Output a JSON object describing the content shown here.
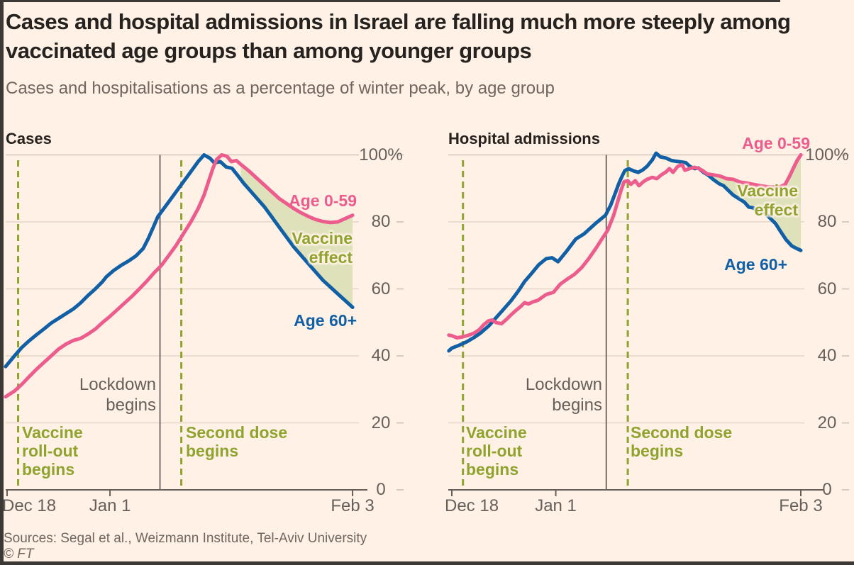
{
  "header": {
    "title": "Cases and hospital admissions in Israel are falling much more steeply among vaccinated age groups than among younger groups",
    "subtitle": "Cases and hospitalisations as a percentage of winter peak, by age group"
  },
  "footer": {
    "sources": "Sources: Segal et al., Weizmann Institute, Tel-Aviv University",
    "copyright": "© FT"
  },
  "colors": {
    "background": "#FFF1E5",
    "pink": "#EC5C8D",
    "blue": "#1160A5",
    "olive": "#8FA32F",
    "wedge_fill": "#DFE1BB",
    "grid": "#E4D6C8",
    "grid_top": "#D2C5B9",
    "axis": "#66605C",
    "side_dash": "#D8CABC",
    "title_text": "#26221F",
    "muted_text": "#6F6660",
    "frame": "#3B3835"
  },
  "y_axis": {
    "ticks": [
      {
        "label": "100%",
        "value": 100
      },
      {
        "label": "80",
        "value": 80
      },
      {
        "label": "60",
        "value": 60
      },
      {
        "label": "40",
        "value": 40
      },
      {
        "label": "20",
        "value": 20
      },
      {
        "label": "0",
        "value": 0
      }
    ]
  },
  "x_axis": {
    "unit": "days since Dec 18",
    "ticks": [
      {
        "label": "Dec 18",
        "day": 0,
        "align": "left"
      },
      {
        "label": "Jan 1",
        "day": 14,
        "align": "center"
      },
      {
        "label": "Feb 3",
        "day": 47,
        "align": "center"
      }
    ]
  },
  "annotations": {
    "vaccine_rollout": {
      "day": 1.5,
      "lines": [
        "Vaccine",
        "roll-out",
        "begins"
      ]
    },
    "lockdown": {
      "day": 20.8,
      "lines": [
        "Lockdown",
        "begins"
      ]
    },
    "second_dose": {
      "day": 23.7,
      "lines": [
        "Second dose",
        "begins"
      ]
    },
    "vaccine_effect": {
      "lines": [
        "Vaccine",
        "effect"
      ]
    },
    "age_0_59_label": "Age 0-59",
    "age_60_label": "Age 60+"
  },
  "chart_data": [
    {
      "type": "line",
      "title": "Cases",
      "ylim": [
        0,
        100
      ],
      "wedge_start_day": 31.8,
      "series": [
        {
          "name": "Age 60+",
          "color_key": "blue",
          "points": [
            [
              -0.2,
              36.8
            ],
            [
              1,
              40
            ],
            [
              2,
              42.5
            ],
            [
              3,
              44.5
            ],
            [
              4,
              46.3
            ],
            [
              5,
              48
            ],
            [
              6,
              49.8
            ],
            [
              7,
              51.2
            ],
            [
              8,
              52.6
            ],
            [
              9,
              54
            ],
            [
              10,
              55.8
            ],
            [
              11,
              58
            ],
            [
              12,
              60
            ],
            [
              13,
              62.2
            ],
            [
              13.5,
              63.6
            ],
            [
              14.5,
              65.5
            ],
            [
              15.5,
              67
            ],
            [
              16.5,
              68.3
            ],
            [
              17.5,
              69.8
            ],
            [
              18.5,
              72
            ],
            [
              19.2,
              75
            ],
            [
              20,
              79
            ],
            [
              20.5,
              81.5
            ],
            [
              21,
              83
            ],
            [
              22,
              86
            ],
            [
              23,
              89
            ],
            [
              24,
              92
            ],
            [
              25,
              95
            ],
            [
              26,
              98
            ],
            [
              26.8,
              100
            ],
            [
              27.6,
              99
            ],
            [
              28.2,
              97.6
            ],
            [
              29,
              98
            ],
            [
              29.8,
              96.4
            ],
            [
              30.6,
              96
            ],
            [
              31.4,
              93.8
            ],
            [
              32.2,
              91.5
            ],
            [
              33,
              89.5
            ],
            [
              34,
              87
            ],
            [
              35,
              84.5
            ],
            [
              36,
              81.5
            ],
            [
              37,
              78.5
            ],
            [
              38,
              75.5
            ],
            [
              39,
              72.5
            ],
            [
              40,
              70
            ],
            [
              41,
              67.5
            ],
            [
              42,
              65
            ],
            [
              43,
              62.5
            ],
            [
              44,
              60.5
            ],
            [
              45,
              58.5
            ],
            [
              46,
              56.5
            ],
            [
              47,
              54.5
            ]
          ]
        },
        {
          "name": "Age 0-59",
          "color_key": "pink",
          "points": [
            [
              -0.2,
              27.8
            ],
            [
              1,
              29.5
            ],
            [
              2,
              31.5
            ],
            [
              3,
              33.8
            ],
            [
              4,
              36
            ],
            [
              5,
              38
            ],
            [
              6,
              40
            ],
            [
              7,
              42
            ],
            [
              8,
              43.5
            ],
            [
              9,
              44.6
            ],
            [
              10,
              45.2
            ],
            [
              11,
              46.5
            ],
            [
              12,
              48
            ],
            [
              13,
              50
            ],
            [
              14,
              51.8
            ],
            [
              15,
              53.8
            ],
            [
              16,
              55.8
            ],
            [
              17,
              57.8
            ],
            [
              18,
              60
            ],
            [
              19,
              62.3
            ],
            [
              20,
              64.8
            ],
            [
              21,
              67
            ],
            [
              22,
              70
            ],
            [
              23,
              73
            ],
            [
              24,
              76.5
            ],
            [
              25,
              80
            ],
            [
              26,
              84
            ],
            [
              26.8,
              88
            ],
            [
              27.4,
              92
            ],
            [
              28,
              96
            ],
            [
              28.5,
              98.6
            ],
            [
              29.2,
              100
            ],
            [
              29.9,
              99.6
            ],
            [
              30.5,
              98
            ],
            [
              31.2,
              98.3
            ],
            [
              32,
              96.8
            ],
            [
              33,
              95
            ],
            [
              34,
              93
            ],
            [
              35,
              91
            ],
            [
              36,
              89
            ],
            [
              37,
              87
            ],
            [
              38,
              85.5
            ],
            [
              39,
              84
            ],
            [
              40,
              82.7
            ],
            [
              41,
              81.6
            ],
            [
              42,
              80.7
            ],
            [
              43,
              80.1
            ],
            [
              44,
              79.8
            ],
            [
              45,
              80
            ],
            [
              46,
              81
            ],
            [
              47,
              82
            ]
          ]
        }
      ]
    },
    {
      "type": "line",
      "title": "Hospital admissions",
      "ylim": [
        0,
        100
      ],
      "wedge_start_day": 33.6,
      "series": [
        {
          "name": "Age 60+",
          "color_key": "blue",
          "points": [
            [
              -0.4,
              41.5
            ],
            [
              0,
              42.3
            ],
            [
              1,
              43.2
            ],
            [
              2,
              44.2
            ],
            [
              3,
              45.5
            ],
            [
              3.8,
              46.7
            ],
            [
              5,
              49
            ],
            [
              6,
              51.5
            ],
            [
              7,
              54
            ],
            [
              8,
              56.5
            ],
            [
              9,
              59.5
            ],
            [
              9.8,
              62.2
            ],
            [
              10.7,
              64.5
            ],
            [
              11.7,
              67.2
            ],
            [
              12.7,
              69
            ],
            [
              13.5,
              69.3
            ],
            [
              14.3,
              68.1
            ],
            [
              15.4,
              71.1
            ],
            [
              16.7,
              74.9
            ],
            [
              17.8,
              76.4
            ],
            [
              18.6,
              78
            ],
            [
              19.5,
              79.8
            ],
            [
              20.7,
              82
            ],
            [
              21.4,
              85
            ],
            [
              22,
              88.5
            ],
            [
              22.5,
              91.5
            ],
            [
              22.9,
              93.5
            ],
            [
              23.3,
              95.3
            ],
            [
              23.8,
              95.9
            ],
            [
              24.5,
              95.2
            ],
            [
              25.1,
              94.8
            ],
            [
              25.7,
              95.5
            ],
            [
              26.3,
              96.6
            ],
            [
              27,
              98.5
            ],
            [
              27.5,
              100.5
            ],
            [
              28.1,
              99.4
            ],
            [
              28.8,
              99.1
            ],
            [
              29.6,
              98.3
            ],
            [
              30.2,
              98.1
            ],
            [
              30.8,
              97.9
            ],
            [
              31.5,
              97.7
            ],
            [
              32.1,
              96.5
            ],
            [
              32.7,
              95.9
            ],
            [
              33.2,
              96.1
            ],
            [
              33.9,
              94.8
            ],
            [
              34.5,
              94
            ],
            [
              35.3,
              92.5
            ],
            [
              36,
              91.4
            ],
            [
              36.6,
              90.8
            ],
            [
              37.1,
              89.7
            ],
            [
              37.9,
              88
            ],
            [
              38.6,
              87
            ],
            [
              39.4,
              85.9
            ],
            [
              40,
              84.4
            ],
            [
              40.6,
              84.2
            ],
            [
              41.2,
              83.1
            ],
            [
              41.8,
              83.8
            ],
            [
              42.4,
              82.1
            ],
            [
              43,
              80.8
            ],
            [
              43.6,
              79.5
            ],
            [
              44.2,
              77.4
            ],
            [
              45,
              74.7
            ],
            [
              45.8,
              72.8
            ],
            [
              46.4,
              72.1
            ],
            [
              47,
              71.5
            ]
          ]
        },
        {
          "name": "Age 0-59",
          "color_key": "pink",
          "points": [
            [
              -0.4,
              46.2
            ],
            [
              0,
              46
            ],
            [
              0.7,
              45.4
            ],
            [
              1.5,
              45.7
            ],
            [
              2.3,
              46.2
            ],
            [
              3,
              46.8
            ],
            [
              3.7,
              47.8
            ],
            [
              4.3,
              49.3
            ],
            [
              4.9,
              50.4
            ],
            [
              5.4,
              50.7
            ],
            [
              6,
              49.9
            ],
            [
              6.7,
              49.6
            ],
            [
              7.4,
              51
            ],
            [
              8,
              52.3
            ],
            [
              8.7,
              53.7
            ],
            [
              9.3,
              54.8
            ],
            [
              9.8,
              55.9
            ],
            [
              10.3,
              55.5
            ],
            [
              11,
              56.2
            ],
            [
              11.6,
              56.6
            ],
            [
              12.7,
              58.3
            ],
            [
              13.7,
              59
            ],
            [
              14.6,
              61.4
            ],
            [
              15.6,
              63
            ],
            [
              16.5,
              64.3
            ],
            [
              17.5,
              66.4
            ],
            [
              18.4,
              68.9
            ],
            [
              19.4,
              72.1
            ],
            [
              20.3,
              75.2
            ],
            [
              21,
              77.5
            ],
            [
              21.8,
              82
            ],
            [
              22.4,
              86.5
            ],
            [
              22.8,
              89.5
            ],
            [
              23.2,
              92
            ],
            [
              23.7,
              92.3
            ],
            [
              24.1,
              91.2
            ],
            [
              24.7,
              92.3
            ],
            [
              25.2,
              90.8
            ],
            [
              25.8,
              92
            ],
            [
              26.3,
              92.7
            ],
            [
              27,
              93.3
            ],
            [
              27.6,
              92.9
            ],
            [
              28.2,
              94
            ],
            [
              28.9,
              95
            ],
            [
              29.3,
              95.9
            ],
            [
              29.8,
              94.8
            ],
            [
              30.4,
              96.5
            ],
            [
              31,
              97.1
            ],
            [
              31.4,
              95.4
            ],
            [
              32,
              95.9
            ],
            [
              32.7,
              96.3
            ],
            [
              33.3,
              95.9
            ],
            [
              33.7,
              95.4
            ],
            [
              34.4,
              94.3
            ],
            [
              35.3,
              94
            ],
            [
              36.1,
              93.7
            ],
            [
              37,
              92.9
            ],
            [
              37.9,
              92.7
            ],
            [
              38.8,
              91.9
            ],
            [
              39.7,
              91.6
            ],
            [
              40.6,
              91.2
            ],
            [
              41.5,
              90.8
            ],
            [
              42.4,
              90.5
            ],
            [
              43.2,
              90.4
            ],
            [
              44.2,
              90.4
            ],
            [
              44.9,
              91.2
            ],
            [
              45.5,
              93.7
            ],
            [
              46.1,
              96.5
            ],
            [
              46.5,
              98.3
            ],
            [
              47,
              100
            ]
          ]
        }
      ]
    }
  ]
}
